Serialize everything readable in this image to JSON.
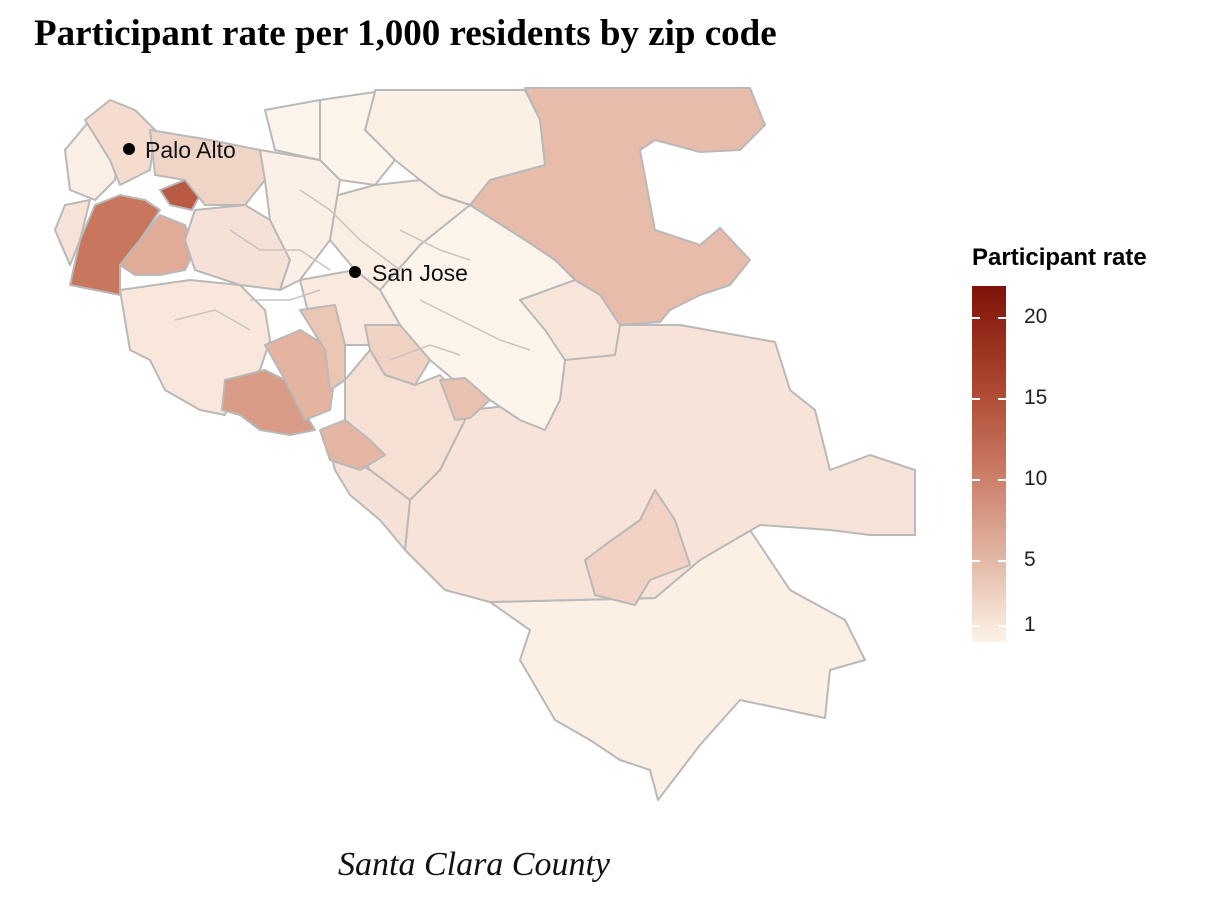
{
  "title": "Participant rate per 1,000 residents by zip code",
  "subtitle": "Santa Clara County",
  "legend": {
    "title": "Participant rate",
    "ticks": [
      {
        "label": "20",
        "value": 20
      },
      {
        "label": "15",
        "value": 15
      },
      {
        "label": "10",
        "value": 10
      },
      {
        "label": "5",
        "value": 5
      },
      {
        "label": "1",
        "value": 1
      }
    ],
    "color_low": "#fdf3e7",
    "color_high": "#7f1207"
  },
  "cities": [
    {
      "name": "Palo Alto"
    },
    {
      "name": "San Jose"
    }
  ],
  "colors": {
    "border": "#b9b9b9",
    "background": "#ffffff"
  }
}
